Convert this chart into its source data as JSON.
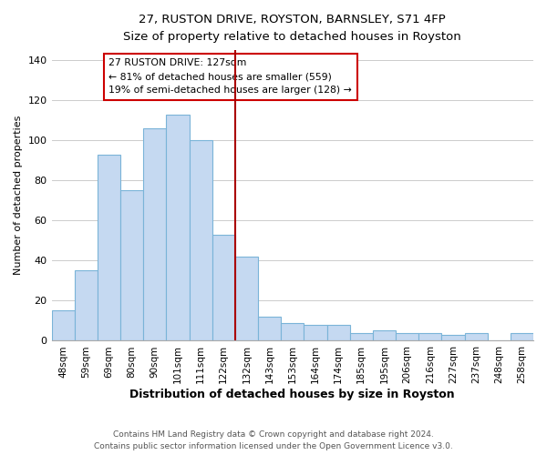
{
  "title": "27, RUSTON DRIVE, ROYSTON, BARNSLEY, S71 4FP",
  "subtitle": "Size of property relative to detached houses in Royston",
  "xlabel": "Distribution of detached houses by size in Royston",
  "ylabel": "Number of detached properties",
  "bar_labels": [
    "48sqm",
    "59sqm",
    "69sqm",
    "80sqm",
    "90sqm",
    "101sqm",
    "111sqm",
    "122sqm",
    "132sqm",
    "143sqm",
    "153sqm",
    "164sqm",
    "174sqm",
    "185sqm",
    "195sqm",
    "206sqm",
    "216sqm",
    "227sqm",
    "237sqm",
    "248sqm",
    "258sqm"
  ],
  "bar_values": [
    15,
    35,
    93,
    75,
    106,
    113,
    100,
    53,
    42,
    12,
    9,
    8,
    8,
    4,
    5,
    4,
    4,
    3,
    4,
    0,
    4
  ],
  "bar_color": "#c5d9f1",
  "bar_edge_color": "#7ab4d8",
  "vline_color": "#aa0000",
  "annotation_title": "27 RUSTON DRIVE: 127sqm",
  "annotation_line1": "← 81% of detached houses are smaller (559)",
  "annotation_line2": "19% of semi-detached houses are larger (128) →",
  "annotation_box_edge": "#cc0000",
  "ylim": [
    0,
    145
  ],
  "footer1": "Contains HM Land Registry data © Crown copyright and database right 2024.",
  "footer2": "Contains public sector information licensed under the Open Government Licence v3.0."
}
